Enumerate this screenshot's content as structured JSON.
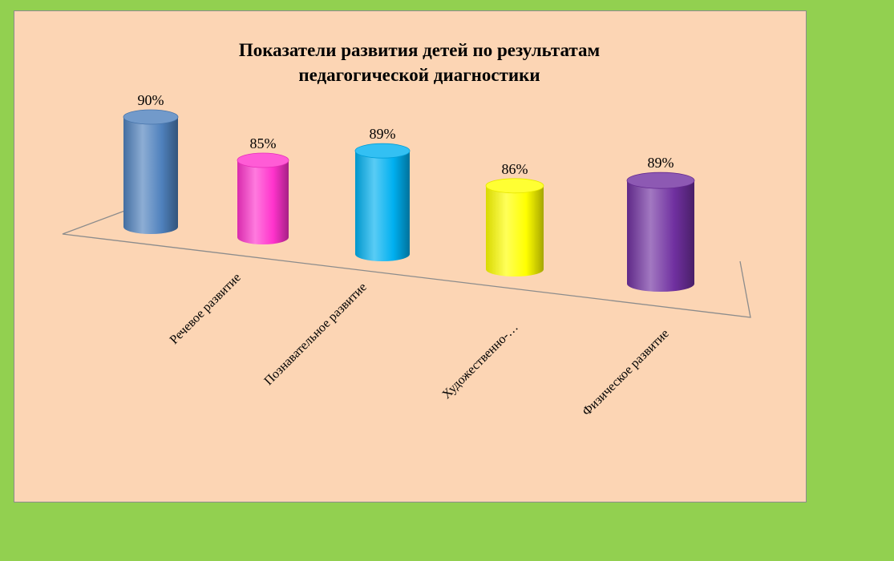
{
  "chart_data": {
    "type": "bar",
    "style": "3d-cylinder",
    "title_lines": [
      "Показатели развития детей  по результатам",
      "педагогической диагностики"
    ],
    "categories": [
      "Речевое развитие",
      "Познавательное развитие",
      "",
      "Художественно-…",
      "Физическое развитие"
    ],
    "values": [
      90,
      85,
      89,
      86,
      89
    ],
    "data_labels": [
      "90%",
      "85%",
      "89%",
      "86%",
      "89%"
    ],
    "colors": [
      "#4f81bd",
      "#ff33cc",
      "#00b0f0",
      "#ffff00",
      "#7030a0"
    ],
    "ylim": [
      80,
      95
    ],
    "grid": false,
    "legend": "none"
  },
  "page": {
    "background_color": "#92d050",
    "panel_color": "#fcd5b4"
  }
}
